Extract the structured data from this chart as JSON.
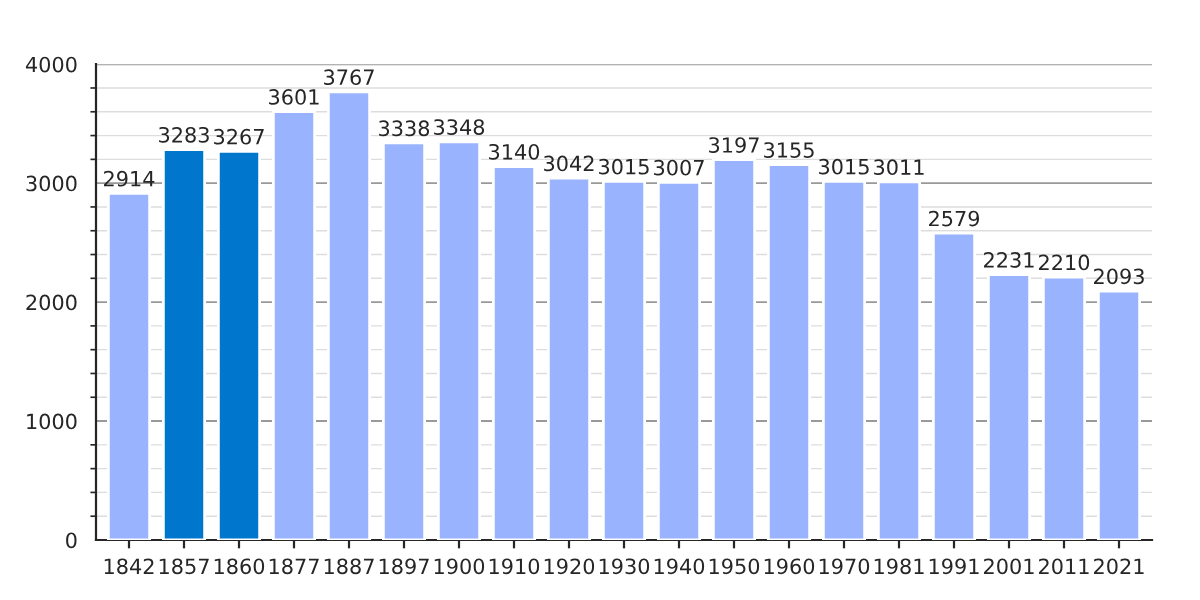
{
  "chart_data": {
    "type": "bar",
    "categories": [
      "1842",
      "1857",
      "1860",
      "1877",
      "1887",
      "1897",
      "1900",
      "1910",
      "1920",
      "1930",
      "1940",
      "1950",
      "1960",
      "1970",
      "1981",
      "1991",
      "2001",
      "2011",
      "2021"
    ],
    "values": [
      2914,
      3283,
      3267,
      3601,
      3767,
      3338,
      3348,
      3140,
      3042,
      3015,
      3007,
      3197,
      3155,
      3015,
      3011,
      2579,
      2231,
      2210,
      2093
    ],
    "colors": [
      "#99b3ff",
      "#0077cc",
      "#0077cc",
      "#99b3ff",
      "#99b3ff",
      "#99b3ff",
      "#99b3ff",
      "#99b3ff",
      "#99b3ff",
      "#99b3ff",
      "#99b3ff",
      "#99b3ff",
      "#99b3ff",
      "#99b3ff",
      "#99b3ff",
      "#99b3ff",
      "#99b3ff",
      "#99b3ff",
      "#99b3ff"
    ],
    "ylim": [
      0,
      4000
    ],
    "yticks": [
      0,
      1000,
      2000,
      3000,
      4000
    ],
    "grid": "y",
    "data_labels": true
  }
}
